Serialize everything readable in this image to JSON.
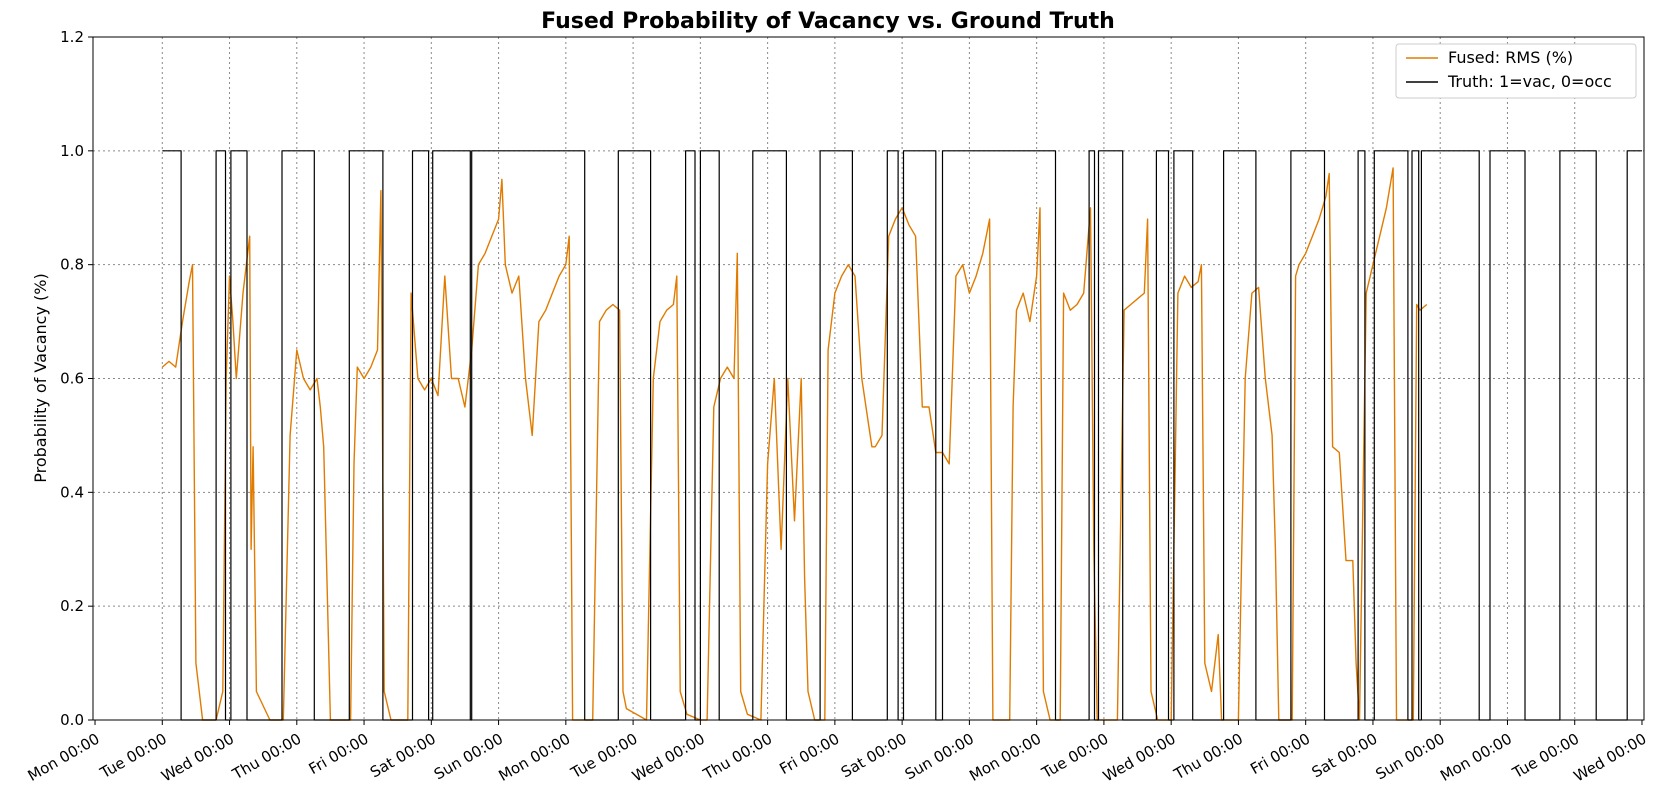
{
  "chart_data": {
    "type": "line",
    "title": "Fused Probability of Vacancy vs. Ground Truth",
    "xlabel": "",
    "ylabel": "Probability of Vacancy (%)",
    "ylim": [
      0,
      1.2
    ],
    "yticks": [
      "0.0",
      "0.2",
      "0.4",
      "0.6",
      "0.8",
      "1.0",
      "1.2"
    ],
    "xlim": [
      -0.03,
      23.03
    ],
    "xtick_values": [
      0,
      1,
      2,
      3,
      4,
      5,
      6,
      7,
      8,
      9,
      10,
      11,
      12,
      13,
      14,
      15,
      16,
      17,
      18,
      19,
      20,
      21,
      22,
      23
    ],
    "xtick_labels": [
      "Mon 00:00",
      "Tue 00:00",
      "Wed 00:00",
      "Thu 00:00",
      "Fri 00:00",
      "Sat 00:00",
      "Sun 00:00",
      "Mon 00:00",
      "Tue 00:00",
      "Wed 00:00",
      "Thu 00:00",
      "Fri 00:00",
      "Sat 00:00",
      "Sun 00:00",
      "Mon 00:00",
      "Tue 00:00",
      "Wed 00:00",
      "Thu 00:00",
      "Fri 00:00",
      "Sat 00:00",
      "Sun 00:00",
      "Mon 00:00",
      "Tue 00:00",
      "Wed 00:00"
    ],
    "grid": true,
    "legend_position": "top-right",
    "series": [
      {
        "name": "Fused: RMS (%)",
        "color": "#e07b00",
        "points": [
          [
            1.0,
            0.62
          ],
          [
            1.1,
            0.63
          ],
          [
            1.2,
            0.62
          ],
          [
            1.3,
            0.7
          ],
          [
            1.4,
            0.77
          ],
          [
            1.45,
            0.8
          ],
          [
            1.5,
            0.1
          ],
          [
            1.6,
            0.0
          ],
          [
            1.8,
            0.0
          ],
          [
            1.9,
            0.05
          ],
          [
            1.95,
            0.6
          ],
          [
            2.0,
            0.78
          ],
          [
            2.05,
            0.7
          ],
          [
            2.1,
            0.6
          ],
          [
            2.2,
            0.75
          ],
          [
            2.3,
            0.85
          ],
          [
            2.32,
            0.3
          ],
          [
            2.35,
            0.48
          ],
          [
            2.4,
            0.05
          ],
          [
            2.6,
            0.0
          ],
          [
            2.8,
            0.0
          ],
          [
            2.9,
            0.5
          ],
          [
            3.0,
            0.65
          ],
          [
            3.1,
            0.6
          ],
          [
            3.2,
            0.58
          ],
          [
            3.3,
            0.6
          ],
          [
            3.35,
            0.55
          ],
          [
            3.4,
            0.48
          ],
          [
            3.5,
            0.0
          ],
          [
            3.8,
            0.0
          ],
          [
            3.85,
            0.45
          ],
          [
            3.9,
            0.62
          ],
          [
            4.0,
            0.6
          ],
          [
            4.1,
            0.62
          ],
          [
            4.2,
            0.65
          ],
          [
            4.25,
            0.93
          ],
          [
            4.3,
            0.05
          ],
          [
            4.4,
            0.0
          ],
          [
            4.65,
            0.0
          ],
          [
            4.7,
            0.75
          ],
          [
            4.8,
            0.6
          ],
          [
            4.9,
            0.58
          ],
          [
            5.0,
            0.6
          ],
          [
            5.1,
            0.57
          ],
          [
            5.2,
            0.78
          ],
          [
            5.3,
            0.6
          ],
          [
            5.4,
            0.6
          ],
          [
            5.5,
            0.55
          ],
          [
            5.6,
            0.65
          ],
          [
            5.7,
            0.8
          ],
          [
            5.8,
            0.82
          ],
          [
            5.9,
            0.85
          ],
          [
            6.0,
            0.88
          ],
          [
            6.05,
            0.95
          ],
          [
            6.1,
            0.8
          ],
          [
            6.2,
            0.75
          ],
          [
            6.3,
            0.78
          ],
          [
            6.4,
            0.6
          ],
          [
            6.5,
            0.5
          ],
          [
            6.6,
            0.7
          ],
          [
            6.7,
            0.72
          ],
          [
            6.8,
            0.75
          ],
          [
            6.9,
            0.78
          ],
          [
            7.0,
            0.8
          ],
          [
            7.05,
            0.85
          ],
          [
            7.1,
            0.0
          ],
          [
            7.4,
            0.0
          ],
          [
            7.5,
            0.7
          ],
          [
            7.6,
            0.72
          ],
          [
            7.7,
            0.73
          ],
          [
            7.8,
            0.72
          ],
          [
            7.85,
            0.05
          ],
          [
            7.9,
            0.02
          ],
          [
            8.2,
            0.0
          ],
          [
            8.3,
            0.6
          ],
          [
            8.4,
            0.7
          ],
          [
            8.5,
            0.72
          ],
          [
            8.6,
            0.73
          ],
          [
            8.65,
            0.78
          ],
          [
            8.7,
            0.05
          ],
          [
            8.8,
            0.01
          ],
          [
            9.0,
            0.0
          ],
          [
            9.1,
            0.0
          ],
          [
            9.2,
            0.55
          ],
          [
            9.3,
            0.6
          ],
          [
            9.4,
            0.62
          ],
          [
            9.5,
            0.6
          ],
          [
            9.55,
            0.82
          ],
          [
            9.6,
            0.05
          ],
          [
            9.7,
            0.01
          ],
          [
            9.9,
            0.0
          ],
          [
            10.0,
            0.45
          ],
          [
            10.1,
            0.6
          ],
          [
            10.2,
            0.3
          ],
          [
            10.3,
            0.6
          ],
          [
            10.4,
            0.35
          ],
          [
            10.5,
            0.6
          ],
          [
            10.55,
            0.25
          ],
          [
            10.6,
            0.05
          ],
          [
            10.7,
            0.0
          ],
          [
            10.85,
            0.0
          ],
          [
            10.9,
            0.65
          ],
          [
            11.0,
            0.75
          ],
          [
            11.1,
            0.78
          ],
          [
            11.2,
            0.8
          ],
          [
            11.3,
            0.78
          ],
          [
            11.4,
            0.6
          ],
          [
            11.5,
            0.52
          ],
          [
            11.55,
            0.48
          ],
          [
            11.6,
            0.48
          ],
          [
            11.7,
            0.5
          ],
          [
            11.8,
            0.85
          ],
          [
            11.9,
            0.88
          ],
          [
            12.0,
            0.9
          ],
          [
            12.1,
            0.87
          ],
          [
            12.2,
            0.85
          ],
          [
            12.3,
            0.55
          ],
          [
            12.4,
            0.55
          ],
          [
            12.5,
            0.47
          ],
          [
            12.6,
            0.47
          ],
          [
            12.7,
            0.45
          ],
          [
            12.8,
            0.78
          ],
          [
            12.9,
            0.8
          ],
          [
            13.0,
            0.75
          ],
          [
            13.1,
            0.78
          ],
          [
            13.2,
            0.82
          ],
          [
            13.3,
            0.88
          ],
          [
            13.35,
            0.0
          ],
          [
            13.6,
            0.0
          ],
          [
            13.65,
            0.55
          ],
          [
            13.7,
            0.72
          ],
          [
            13.8,
            0.75
          ],
          [
            13.9,
            0.7
          ],
          [
            14.0,
            0.78
          ],
          [
            14.05,
            0.9
          ],
          [
            14.1,
            0.05
          ],
          [
            14.2,
            0.0
          ],
          [
            14.35,
            0.0
          ],
          [
            14.4,
            0.75
          ],
          [
            14.5,
            0.72
          ],
          [
            14.6,
            0.73
          ],
          [
            14.7,
            0.75
          ],
          [
            14.8,
            0.9
          ],
          [
            14.85,
            0.3
          ],
          [
            14.9,
            0.0
          ],
          [
            15.2,
            0.0
          ],
          [
            15.3,
            0.72
          ],
          [
            15.4,
            0.73
          ],
          [
            15.5,
            0.74
          ],
          [
            15.6,
            0.75
          ],
          [
            15.65,
            0.88
          ],
          [
            15.7,
            0.05
          ],
          [
            15.8,
            0.0
          ],
          [
            16.0,
            0.0
          ],
          [
            16.1,
            0.75
          ],
          [
            16.2,
            0.78
          ],
          [
            16.3,
            0.76
          ],
          [
            16.4,
            0.77
          ],
          [
            16.45,
            0.8
          ],
          [
            16.5,
            0.1
          ],
          [
            16.6,
            0.05
          ],
          [
            16.7,
            0.15
          ],
          [
            16.75,
            0.0
          ],
          [
            17.0,
            0.0
          ],
          [
            17.1,
            0.6
          ],
          [
            17.2,
            0.75
          ],
          [
            17.3,
            0.76
          ],
          [
            17.4,
            0.6
          ],
          [
            17.5,
            0.5
          ],
          [
            17.55,
            0.3
          ],
          [
            17.6,
            0.0
          ],
          [
            17.8,
            0.0
          ],
          [
            17.85,
            0.78
          ],
          [
            17.9,
            0.8
          ],
          [
            18.0,
            0.82
          ],
          [
            18.1,
            0.85
          ],
          [
            18.2,
            0.88
          ],
          [
            18.3,
            0.92
          ],
          [
            18.35,
            0.96
          ],
          [
            18.4,
            0.48
          ],
          [
            18.5,
            0.47
          ],
          [
            18.6,
            0.28
          ],
          [
            18.7,
            0.28
          ],
          [
            18.75,
            0.1
          ],
          [
            18.8,
            0.0
          ],
          [
            18.9,
            0.75
          ],
          [
            19.0,
            0.8
          ],
          [
            19.1,
            0.85
          ],
          [
            19.2,
            0.9
          ],
          [
            19.3,
            0.97
          ],
          [
            19.35,
            0.0
          ],
          [
            19.6,
            0.0
          ],
          [
            19.65,
            0.73
          ],
          [
            19.7,
            0.72
          ],
          [
            19.8,
            0.73
          ]
        ]
      },
      {
        "name": "Truth: 1=vac, 0=occ",
        "color": "#000000",
        "points": [
          [
            1.0,
            1
          ],
          [
            1.28,
            1
          ],
          [
            1.28,
            0
          ],
          [
            1.8,
            0
          ],
          [
            1.8,
            1
          ],
          [
            1.94,
            1
          ],
          [
            1.94,
            0
          ],
          [
            2.02,
            0
          ],
          [
            2.02,
            1
          ],
          [
            2.26,
            1
          ],
          [
            2.26,
            0
          ],
          [
            2.78,
            0
          ],
          [
            2.78,
            1
          ],
          [
            3.26,
            1
          ],
          [
            3.26,
            0
          ],
          [
            3.78,
            0
          ],
          [
            3.78,
            1
          ],
          [
            4.28,
            1
          ],
          [
            4.28,
            0
          ],
          [
            4.72,
            0
          ],
          [
            4.72,
            1
          ],
          [
            4.96,
            1
          ],
          [
            4.96,
            0
          ],
          [
            5.02,
            0
          ],
          [
            5.02,
            1
          ],
          [
            5.58,
            1
          ],
          [
            5.58,
            0
          ],
          [
            5.6,
            0
          ],
          [
            5.6,
            1
          ],
          [
            7.28,
            1
          ],
          [
            7.28,
            0
          ],
          [
            7.78,
            0
          ],
          [
            7.78,
            1
          ],
          [
            8.26,
            1
          ],
          [
            8.26,
            0
          ],
          [
            8.78,
            0
          ],
          [
            8.78,
            1
          ],
          [
            8.92,
            1
          ],
          [
            8.92,
            0
          ],
          [
            9.0,
            0
          ],
          [
            9.0,
            1
          ],
          [
            9.28,
            1
          ],
          [
            9.28,
            0
          ],
          [
            9.78,
            0
          ],
          [
            9.78,
            1
          ],
          [
            10.28,
            1
          ],
          [
            10.28,
            0
          ],
          [
            10.78,
            0
          ],
          [
            10.78,
            1
          ],
          [
            11.26,
            1
          ],
          [
            11.26,
            0
          ],
          [
            11.78,
            0
          ],
          [
            11.78,
            1
          ],
          [
            11.94,
            1
          ],
          [
            11.94,
            0
          ],
          [
            12.02,
            0
          ],
          [
            12.02,
            1
          ],
          [
            12.5,
            1
          ],
          [
            12.5,
            0
          ],
          [
            12.6,
            0
          ],
          [
            12.6,
            1
          ],
          [
            14.28,
            1
          ],
          [
            14.28,
            0
          ],
          [
            14.78,
            0
          ],
          [
            14.78,
            1
          ],
          [
            14.86,
            1
          ],
          [
            14.86,
            0
          ],
          [
            14.92,
            0
          ],
          [
            14.92,
            1
          ],
          [
            15.28,
            1
          ],
          [
            15.28,
            0
          ],
          [
            15.78,
            0
          ],
          [
            15.78,
            1
          ],
          [
            15.96,
            1
          ],
          [
            15.96,
            0
          ],
          [
            16.04,
            0
          ],
          [
            16.04,
            1
          ],
          [
            16.32,
            1
          ],
          [
            16.32,
            0
          ],
          [
            16.78,
            0
          ],
          [
            16.78,
            1
          ],
          [
            17.26,
            1
          ],
          [
            17.26,
            0
          ],
          [
            17.78,
            0
          ],
          [
            17.78,
            1
          ],
          [
            18.28,
            1
          ],
          [
            18.28,
            0
          ],
          [
            18.78,
            0
          ],
          [
            18.78,
            1
          ],
          [
            18.88,
            1
          ],
          [
            18.88,
            0
          ],
          [
            19.02,
            0
          ],
          [
            19.02,
            1
          ],
          [
            19.52,
            1
          ],
          [
            19.52,
            0
          ],
          [
            19.58,
            0
          ],
          [
            19.58,
            1
          ],
          [
            19.68,
            1
          ],
          [
            19.68,
            0
          ],
          [
            19.72,
            0
          ],
          [
            19.72,
            1
          ],
          [
            20.58,
            1
          ],
          [
            20.58,
            0
          ],
          [
            20.74,
            0
          ],
          [
            20.74,
            1
          ],
          [
            21.26,
            1
          ],
          [
            21.26,
            0
          ],
          [
            21.78,
            0
          ],
          [
            21.78,
            1
          ],
          [
            22.32,
            1
          ],
          [
            22.32,
            0
          ],
          [
            22.78,
            0
          ],
          [
            22.78,
            1
          ],
          [
            23.0,
            1
          ]
        ]
      }
    ]
  }
}
